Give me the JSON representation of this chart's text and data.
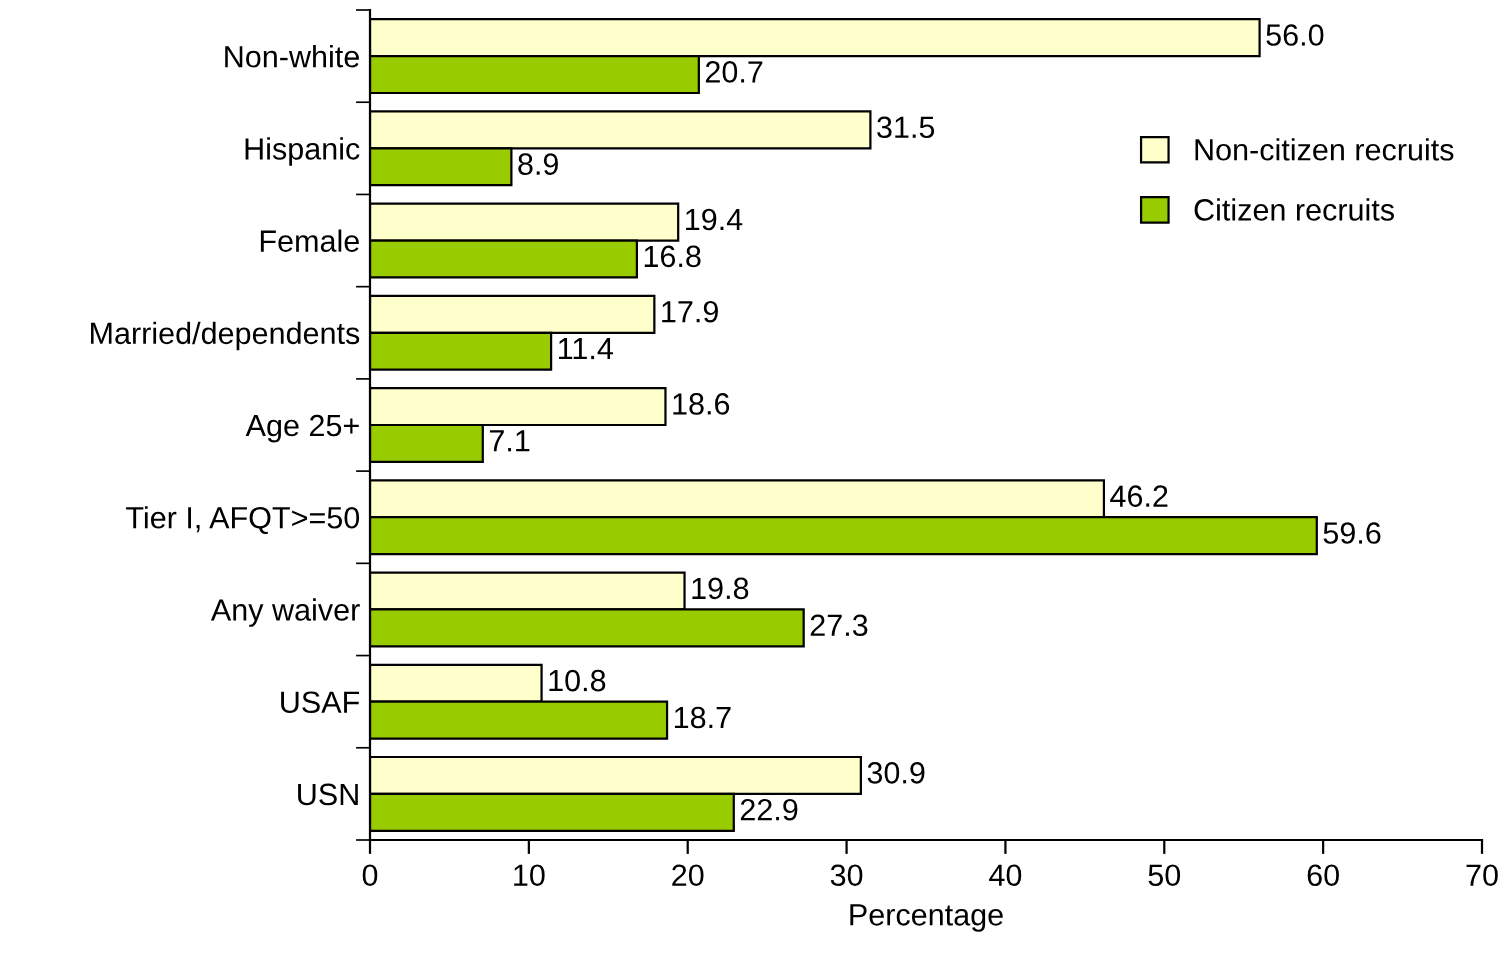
{
  "chart_data": {
    "type": "bar",
    "orientation": "horizontal",
    "xlabel": "Percentage",
    "categories": [
      "Non-white",
      "Hispanic",
      "Female",
      "Married/dependents",
      "Age 25+",
      "Tier I, AFQT>=50",
      "Any waiver",
      "USAF",
      "USN"
    ],
    "series": [
      {
        "name": "Non-citizen recruits",
        "color": "#ffffcc",
        "values": [
          56.0,
          31.5,
          19.4,
          17.9,
          18.6,
          46.2,
          19.8,
          10.8,
          30.9
        ]
      },
      {
        "name": "Citizen recruits",
        "color": "#99cc00",
        "values": [
          20.7,
          8.9,
          16.8,
          11.4,
          7.1,
          59.6,
          27.3,
          18.7,
          22.9
        ]
      }
    ],
    "value_labels": [
      [
        "56.0",
        "31.5",
        "19.4",
        "17.9",
        "18.6",
        "46.2",
        "19.8",
        "10.8",
        "30.9"
      ],
      [
        "20.7",
        "8.9",
        "16.8",
        "11.4",
        "7.1",
        "59.6",
        "27.3",
        "18.7",
        "22.9"
      ]
    ],
    "xlim": [
      0,
      70
    ],
    "xticks": [
      0,
      10,
      20,
      30,
      40,
      50,
      60,
      70
    ],
    "grid": false,
    "legend": "top right"
  }
}
